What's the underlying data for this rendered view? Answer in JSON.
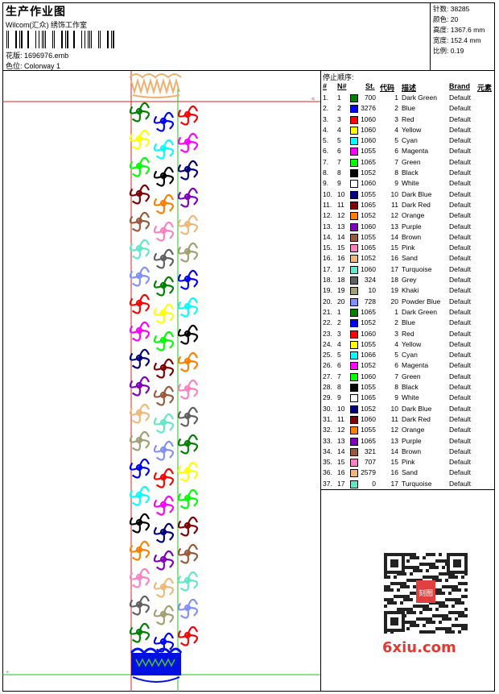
{
  "header": {
    "title": "生产作业图",
    "subtitle": "Wilcom(汇众) 绣饰工作室",
    "pattern_label": "花版:",
    "pattern_file": "1696976.emb",
    "colorway_label": "色位:",
    "colorway": "Colorway 1"
  },
  "stats": [
    {
      "label": "针数:",
      "value": "38285"
    },
    {
      "label": "颜色:",
      "value": "20"
    },
    {
      "label": "高度:",
      "value": "1367.6 mm"
    },
    {
      "label": "宽度:",
      "value": "152.4 mm"
    },
    {
      "label": "比例:",
      "value": "0.19"
    }
  ],
  "stop_list": {
    "title": "停止顺序:",
    "headers": {
      "num": "#",
      "needle": "N#",
      "stitches": "St.",
      "code": "代码",
      "desc": "描述",
      "brand": "Brand",
      "element": "元素"
    },
    "rows": [
      {
        "n": "1.",
        "needle": "1",
        "color": "#008000",
        "st": "700",
        "code": "1",
        "desc": "Dark Green",
        "brand": "Default"
      },
      {
        "n": "2.",
        "needle": "2",
        "color": "#0000ff",
        "st": "3276",
        "code": "2",
        "desc": "Blue",
        "brand": "Default"
      },
      {
        "n": "3.",
        "needle": "3",
        "color": "#ff0000",
        "st": "1060",
        "code": "3",
        "desc": "Red",
        "brand": "Default"
      },
      {
        "n": "4.",
        "needle": "4",
        "color": "#ffff00",
        "st": "1060",
        "code": "4",
        "desc": "Yellow",
        "brand": "Default"
      },
      {
        "n": "5.",
        "needle": "5",
        "color": "#00ffff",
        "st": "1060",
        "code": "5",
        "desc": "Cyan",
        "brand": "Default"
      },
      {
        "n": "6.",
        "needle": "6",
        "color": "#ff00ff",
        "st": "1055",
        "code": "6",
        "desc": "Magenta",
        "brand": "Default"
      },
      {
        "n": "7.",
        "needle": "7",
        "color": "#00ff00",
        "st": "1065",
        "code": "7",
        "desc": "Green",
        "brand": "Default"
      },
      {
        "n": "8.",
        "needle": "8",
        "color": "#000000",
        "st": "1052",
        "code": "8",
        "desc": "Black",
        "brand": "Default"
      },
      {
        "n": "9.",
        "needle": "9",
        "color": "#ffffff",
        "st": "1060",
        "code": "9",
        "desc": "White",
        "brand": "Default"
      },
      {
        "n": "10.",
        "needle": "10",
        "color": "#000080",
        "st": "1055",
        "code": "10",
        "desc": "Dark Blue",
        "brand": "Default"
      },
      {
        "n": "11.",
        "needle": "11",
        "color": "#800000",
        "st": "1065",
        "code": "11",
        "desc": "Dark Red",
        "brand": "Default"
      },
      {
        "n": "12.",
        "needle": "12",
        "color": "#ff8000",
        "st": "1052",
        "code": "12",
        "desc": "Orange",
        "brand": "Default"
      },
      {
        "n": "13.",
        "needle": "13",
        "color": "#8000c0",
        "st": "1060",
        "code": "13",
        "desc": "Purple",
        "brand": "Default"
      },
      {
        "n": "14.",
        "needle": "14",
        "color": "#9a5a3a",
        "st": "1055",
        "code": "14",
        "desc": "Brown",
        "brand": "Default"
      },
      {
        "n": "15.",
        "needle": "15",
        "color": "#ff80c0",
        "st": "1065",
        "code": "15",
        "desc": "Pink",
        "brand": "Default"
      },
      {
        "n": "16.",
        "needle": "16",
        "color": "#f0b878",
        "st": "1052",
        "code": "16",
        "desc": "Sand",
        "brand": "Default"
      },
      {
        "n": "17.",
        "needle": "17",
        "color": "#60e8c8",
        "st": "1060",
        "code": "17",
        "desc": "Turquoise",
        "brand": "Default"
      },
      {
        "n": "18.",
        "needle": "18",
        "color": "#606060",
        "st": "324",
        "code": "18",
        "desc": "Grey",
        "brand": "Default"
      },
      {
        "n": "19.",
        "needle": "19",
        "color": "#a0a070",
        "st": "10",
        "code": "19",
        "desc": "Khaki",
        "brand": "Default"
      },
      {
        "n": "20.",
        "needle": "20",
        "color": "#8090ff",
        "st": "728",
        "code": "20",
        "desc": "Powder Blue",
        "brand": "Default"
      },
      {
        "n": "21.",
        "needle": "1",
        "color": "#008000",
        "st": "1065",
        "code": "1",
        "desc": "Dark Green",
        "brand": "Default"
      },
      {
        "n": "22.",
        "needle": "2",
        "color": "#0000ff",
        "st": "1052",
        "code": "2",
        "desc": "Blue",
        "brand": "Default"
      },
      {
        "n": "23.",
        "needle": "3",
        "color": "#ff0000",
        "st": "1060",
        "code": "3",
        "desc": "Red",
        "brand": "Default"
      },
      {
        "n": "24.",
        "needle": "4",
        "color": "#ffff00",
        "st": "1055",
        "code": "4",
        "desc": "Yellow",
        "brand": "Default"
      },
      {
        "n": "25.",
        "needle": "5",
        "color": "#00ffff",
        "st": "1066",
        "code": "5",
        "desc": "Cyan",
        "brand": "Default"
      },
      {
        "n": "26.",
        "needle": "6",
        "color": "#ff00ff",
        "st": "1052",
        "code": "6",
        "desc": "Magenta",
        "brand": "Default"
      },
      {
        "n": "27.",
        "needle": "7",
        "color": "#00ff00",
        "st": "1060",
        "code": "7",
        "desc": "Green",
        "brand": "Default"
      },
      {
        "n": "28.",
        "needle": "8",
        "color": "#000000",
        "st": "1055",
        "code": "8",
        "desc": "Black",
        "brand": "Default"
      },
      {
        "n": "29.",
        "needle": "9",
        "color": "#ffffff",
        "st": "1065",
        "code": "9",
        "desc": "White",
        "brand": "Default"
      },
      {
        "n": "30.",
        "needle": "10",
        "color": "#000080",
        "st": "1052",
        "code": "10",
        "desc": "Dark Blue",
        "brand": "Default"
      },
      {
        "n": "31.",
        "needle": "11",
        "color": "#800000",
        "st": "1060",
        "code": "11",
        "desc": "Dark Red",
        "brand": "Default"
      },
      {
        "n": "32.",
        "needle": "12",
        "color": "#ff8000",
        "st": "1055",
        "code": "12",
        "desc": "Orange",
        "brand": "Default"
      },
      {
        "n": "33.",
        "needle": "13",
        "color": "#8000c0",
        "st": "1065",
        "code": "13",
        "desc": "Purple",
        "brand": "Default"
      },
      {
        "n": "34.",
        "needle": "14",
        "color": "#9a5a3a",
        "st": "321",
        "code": "14",
        "desc": "Brown",
        "brand": "Default"
      },
      {
        "n": "35.",
        "needle": "15",
        "color": "#ff80c0",
        "st": "707",
        "code": "15",
        "desc": "Pink",
        "brand": "Default"
      },
      {
        "n": "36.",
        "needle": "16",
        "color": "#f0b878",
        "st": "2579",
        "code": "16",
        "desc": "Sand",
        "brand": "Default"
      },
      {
        "n": "37.",
        "needle": "17",
        "color": "#60e8c8",
        "st": "0",
        "code": "17",
        "desc": "Turquoise",
        "brand": "Default"
      }
    ]
  },
  "watermark": {
    "seal_text": "刻图",
    "site": "6xiu.com"
  }
}
